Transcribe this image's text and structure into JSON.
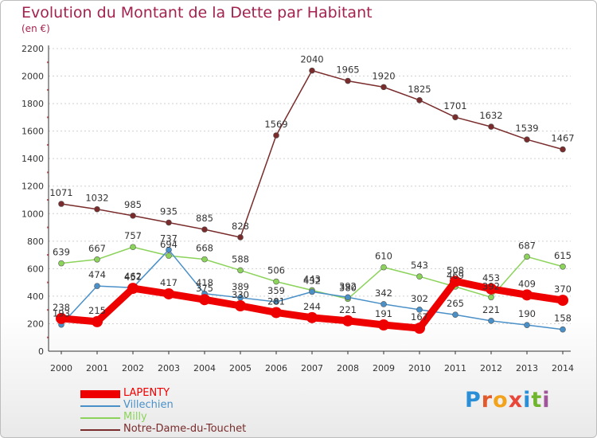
{
  "header": {
    "title": "Evolution du Montant de la Dette par Habitant",
    "subtitle": "(en €)"
  },
  "logo": {
    "text": "Proxiti"
  },
  "colors": {
    "title": "#a3224f",
    "axis": "#333333",
    "tick_marks": "#e05050",
    "gridline": "#d0d0d0",
    "logo_letters": [
      "#2a8fd6",
      "#e25a2c",
      "#f2a21b",
      "#e9463a",
      "#2a8fd6",
      "#6fb62e",
      "#a0559a"
    ]
  },
  "chart_data": {
    "type": "line",
    "title": "Evolution du Montant de la Dette par Habitant",
    "subtitle": "(en €)",
    "xlabel": "",
    "ylabel": "",
    "ylim": [
      0,
      2200
    ],
    "y_ticks": [
      0,
      200,
      400,
      600,
      800,
      1000,
      1200,
      1400,
      1600,
      1800,
      2000,
      2200
    ],
    "x": [
      "2000",
      "2001",
      "2002",
      "2003",
      "2004",
      "2005",
      "2006",
      "2007",
      "2008",
      "2009",
      "2010",
      "2011",
      "2012",
      "2013",
      "2014"
    ],
    "grid": true,
    "series": [
      {
        "name": "LAPENTY",
        "color": "#ee0000",
        "values": [
          238,
          215,
          457,
          417,
          375,
          330,
          281,
          244,
          221,
          191,
          167,
          508,
          453,
          409,
          370
        ]
      },
      {
        "name": "Villechien",
        "color": "#4a90c8",
        "values": [
          193,
          474,
          462,
          737,
          418,
          389,
          359,
          432,
          392,
          342,
          302,
          265,
          221,
          190,
          158
        ]
      },
      {
        "name": "Milly",
        "color": "#8bd35a",
        "values": [
          639,
          667,
          757,
          694,
          668,
          588,
          506,
          443,
          380,
          610,
          543,
          469,
          392,
          687,
          615
        ]
      },
      {
        "name": "Notre-Dame-du-Touchet",
        "color": "#7a2b2b",
        "values": [
          1071,
          1032,
          985,
          935,
          885,
          828,
          1569,
          2040,
          1965,
          1920,
          1825,
          1701,
          1632,
          1539,
          1467
        ]
      }
    ]
  }
}
